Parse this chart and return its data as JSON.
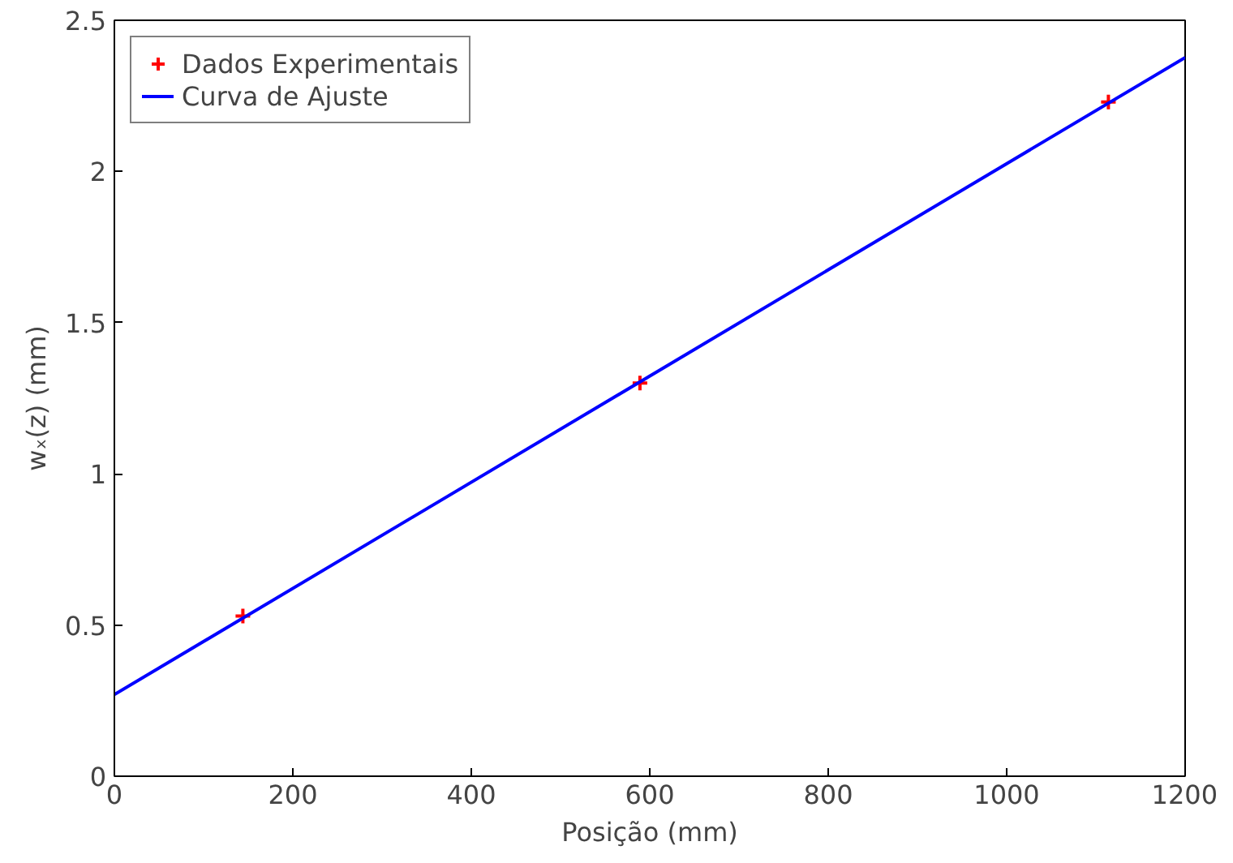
{
  "chart_data": {
    "type": "scatter",
    "xlabel": "Posição (mm)",
    "ylabel": "wₓ(z) (mm)",
    "xlim": [
      0,
      1200
    ],
    "ylim": [
      0,
      2.5
    ],
    "xticks": [
      0,
      200,
      400,
      600,
      800,
      1000,
      1200
    ],
    "yticks": [
      0,
      0.5,
      1,
      1.5,
      2,
      2.5
    ],
    "grid": false,
    "legend": "top left",
    "series": [
      {
        "name": "Dados Experimentais",
        "marker": "cross",
        "color": "#ff0000",
        "x": [
          144,
          589,
          1114
        ],
        "values": [
          0.53,
          1.3,
          2.23
        ]
      },
      {
        "name": "Curva de Ajuste",
        "type": "line",
        "line_style": "solid",
        "color": "#0000ff",
        "x": [
          0,
          1200
        ],
        "values": [
          0.27,
          2.377
        ]
      }
    ]
  }
}
